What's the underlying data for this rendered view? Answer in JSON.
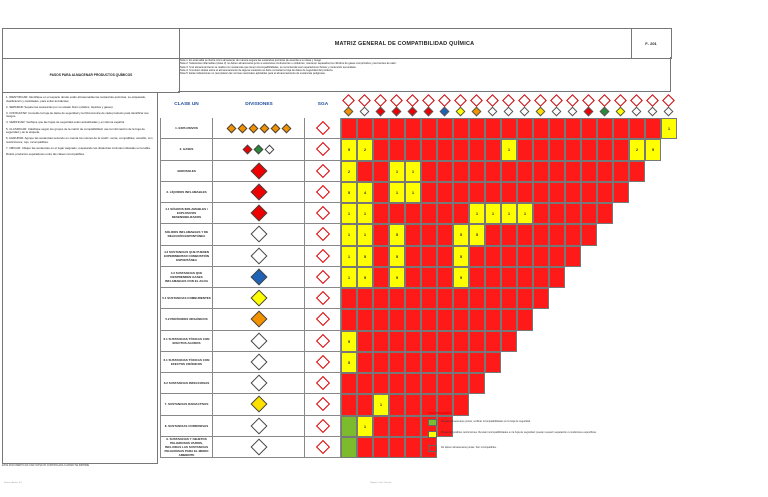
{
  "document": {
    "title": "MATRIZ GENERAL DE COMPATIBILIDAD QUÍMICA",
    "code": "F- 201",
    "left_box_title": "PASOS PARA ALMACENAR PRODUCTOS QUÍMICOS",
    "footer_left": "ESTE DOCUMENTO ES UNA COPIA NO CONTROLADA CUANDO SE IMPRIME",
    "tiny_left": "Fecha edición: 0.0",
    "tiny_center": "Página 1 de 1 Versión"
  },
  "notes": [
    "Nota 1: En esta tabla se ilustra cómo almacenar de manera segura las sustancias químicas de acuerdo a su clase y riesgo.",
    "Nota 2: Sustancias inflamables (clase 3) no deben almacenarse junto a sustancias comburentes u oxidantes; mantener separados los cilindros de gases comprimidos y las fuentes de calor.",
    "Nota 3: Si el almacenamiento se realiza con sustancias que tienen incompatibilidades, se recomienda usar separaciones físicas y contención secundaria.",
    "Nota 4: Si existen dudas sobre el almacenamiento de alguna sustancia se debe consultar la hoja de datos de seguridad del producto.",
    "Nota 5: Estas indicaciones no reemplazan las normas nacionales aplicables para el almacenamiento de sustancias peligrosas."
  ],
  "instructions": [
    "1. IDENTIFICAR: Identifique en el espacio donde están almacenadas las sustancias químicas, su etiquetado, clasificación y cantidades, para evitar accidentes.",
    "2. SEPARAR: Separe las sustancias por su estado físico (sólidos, líquidos y gases).",
    "3. CONSULTAR: Consulte la hoja de datos de seguridad y la ficha técnica de cada producto para identificar sus riesgos.",
    "4. VERIFICAR: Verifique que las hojas de seguridad estén actualizadas y en idioma español.",
    "5. CLASIFICAR: Clasifique según los grupos de la matriz de compatibilidad; use la información de la hoja de seguridad y de la etiqueta.",
    "6. AGRUPAR: Agrupe las sustancias teniendo en cuenta los colores de la matriz: verde, compatibles; amarillo, con restricciones; rojo, incompatibles.",
    "7. UBICAR: Ubique las sustancias en el lugar asignado, respetando las distancias mínimas indicadas en la tabla.",
    "Rótule productos separadores entre las clases incompatibles."
  ],
  "columns": {
    "clase": "CLASE UN",
    "divisiones": "DIVISIONES",
    "sga": "SGA"
  },
  "rows": [
    {
      "label": "1. EXPLOSIVOS"
    },
    {
      "label": "2. GASES"
    },
    {
      "label": "AEROSOLES"
    },
    {
      "label": "3. LÍQUIDOS INFLAMABLES"
    },
    {
      "label": "4.1 SÓLIDOS INFLAMABLES / EXPLOSIVOS DESENSIBILIZADOS"
    },
    {
      "label": "SÓLIDOS INFLAMABLES Y DE REACCIÓN ESPONTÁNEA"
    },
    {
      "label": "4.2 SUSTANCIAS QUE PUEDEN EXPERIMENTAR COMBUSTIÓN ESPONTÁNEA"
    },
    {
      "label": "4.3 SUSTANCIAS QUE DESPRENDEN GASES INFLAMABLES CON EL AGUA"
    },
    {
      "label": "5.1 SUSTANCIAS COMBURENTES"
    },
    {
      "label": "5.2 PERÓXIDOS ORGÁNICOS"
    },
    {
      "label": "6.1 SUSTANCIAS TÓXICAS CON EFECTOS AGUDOS"
    },
    {
      "label": "6.1 SUSTANCIAS TÓXICAS CON EFECTOS CRÓNICOS"
    },
    {
      "label": "6.2 SUSTANCIAS INFECCIOSAS"
    },
    {
      "label": "7. SUSTANCIAS RADIACTIVAS"
    },
    {
      "label": "8. SUSTANCIAS CORROSIVAS"
    },
    {
      "label": "9. SUSTANCIAS Y OBJETOS PELIGROSOS VARIOS, INCLUIDAS LAS SUSTANCIAS PELIGROSAS PARA EL MEDIO AMBIENTE"
    }
  ],
  "colors": {
    "green": "#7dbb2e",
    "yellow": "#ffff00",
    "red": "#ff1a1a"
  },
  "matrix": [
    [
      "R",
      "R",
      "R",
      "R",
      "R",
      "R",
      "R",
      "R",
      "R",
      "R",
      "R",
      "R",
      "R",
      "R",
      "R",
      "R",
      "R",
      "R",
      "R",
      "R",
      "Y"
    ],
    [
      "Y",
      "Y",
      "R",
      "R",
      "R",
      "R",
      "R",
      "R",
      "R",
      "R",
      "Y",
      "R",
      "R",
      "R",
      "R",
      "R",
      "R",
      "R",
      "Y",
      "Y"
    ],
    [
      "Y",
      "R",
      "R",
      "Y",
      "Y",
      "R",
      "R",
      "R",
      "R",
      "R",
      "R",
      "R",
      "R",
      "R",
      "R",
      "R",
      "R",
      "R",
      "R"
    ],
    [
      "Y",
      "Y",
      "R",
      "Y",
      "Y",
      "R",
      "R",
      "R",
      "R",
      "R",
      "R",
      "R",
      "R",
      "R",
      "R",
      "R",
      "R",
      "R"
    ],
    [
      "Y",
      "Y",
      "R",
      "R",
      "R",
      "R",
      "R",
      "R",
      "Y",
      "Y",
      "Y",
      "Y",
      "R",
      "R",
      "R",
      "R",
      "R"
    ],
    [
      "Y",
      "Y",
      "R",
      "Y",
      "R",
      "R",
      "R",
      "Y",
      "Y",
      "R",
      "R",
      "R",
      "R",
      "R",
      "R",
      "R"
    ],
    [
      "Y",
      "Y",
      "R",
      "Y",
      "R",
      "R",
      "R",
      "Y",
      "R",
      "R",
      "R",
      "R",
      "R",
      "R",
      "R"
    ],
    [
      "Y",
      "Y",
      "R",
      "Y",
      "R",
      "R",
      "R",
      "Y",
      "R",
      "R",
      "R",
      "R",
      "R",
      "R"
    ],
    [
      "R",
      "R",
      "R",
      "R",
      "R",
      "R",
      "R",
      "R",
      "R",
      "R",
      "R",
      "R",
      "R"
    ],
    [
      "R",
      "R",
      "R",
      "R",
      "R",
      "R",
      "R",
      "R",
      "R",
      "R",
      "R",
      "R"
    ],
    [
      "Y",
      "R",
      "R",
      "R",
      "R",
      "R",
      "R",
      "R",
      "R",
      "R",
      "R"
    ],
    [
      "Y",
      "R",
      "R",
      "R",
      "R",
      "R",
      "R",
      "R",
      "R",
      "R"
    ],
    [
      "R",
      "R",
      "R",
      "R",
      "R",
      "R",
      "R",
      "R",
      "R"
    ],
    [
      "R",
      "R",
      "Y",
      "R",
      "R",
      "R",
      "R",
      "R"
    ],
    [
      "G",
      "Y",
      "R",
      "R",
      "R",
      "R",
      "R"
    ],
    [
      "G",
      "R",
      "R",
      "R",
      "R",
      "R"
    ]
  ],
  "numbers": [
    [
      "",
      "",
      "",
      "",
      "",
      "",
      "",
      "",
      "",
      "",
      "",
      "",
      "",
      "",
      "",
      "",
      "",
      "",
      "",
      "",
      "1"
    ],
    [
      "5",
      "2",
      "",
      "",
      "",
      "",
      "",
      "",
      "",
      "",
      "1",
      "",
      "",
      "",
      "",
      "",
      "",
      "",
      "2",
      "5"
    ],
    [
      "2",
      "",
      "",
      "1",
      "1",
      "",
      "",
      "",
      "",
      "",
      "",
      "",
      "",
      "",
      "",
      "",
      "",
      "",
      "",
      ""
    ],
    [
      "5",
      "4",
      "",
      "1",
      "1",
      "",
      "",
      "",
      "",
      "",
      "",
      "",
      "",
      "",
      "",
      "",
      "",
      "",
      ""
    ],
    [
      "1",
      "1",
      "",
      "",
      "",
      "",
      "",
      "",
      "1",
      "1",
      "1",
      "1",
      "",
      "",
      "",
      "",
      "",
      ""
    ],
    [
      "1",
      "1",
      "",
      "5",
      "",
      "",
      "",
      "5",
      "5",
      "",
      "",
      "",
      "",
      "",
      "",
      "",
      ""
    ],
    [
      "1",
      "5",
      "",
      "5",
      "",
      "",
      "",
      "5",
      "",
      "",
      "",
      "",
      "",
      "",
      "",
      ""
    ],
    [
      "1",
      "5",
      "",
      "5",
      "",
      "",
      "",
      "5",
      "",
      "",
      "",
      "",
      "",
      "",
      ""
    ],
    [
      "",
      "",
      "",
      "",
      "",
      "",
      "",
      "",
      "",
      "",
      "",
      "",
      "",
      ""
    ],
    [
      "",
      "",
      "",
      "",
      "",
      "",
      "",
      "",
      "",
      "",
      "",
      "",
      ""
    ],
    [
      "5",
      "",
      "",
      "",
      "",
      "",
      "",
      "",
      "",
      "",
      "",
      ""
    ],
    [
      "5",
      "",
      "",
      "",
      "",
      "",
      "",
      "",
      "",
      "",
      ""
    ],
    [
      "",
      "",
      "",
      "",
      "",
      "",
      "",
      "",
      "",
      ""
    ],
    [
      "",
      "",
      "1",
      "",
      "",
      "",
      "",
      "",
      ""
    ],
    [
      "",
      "1",
      "",
      "",
      "",
      "",
      "",
      ""
    ],
    [
      "",
      "",
      "",
      "",
      "",
      "",
      ""
    ]
  ],
  "legend": {
    "title": "CONVENCIONES",
    "items": [
      {
        "color": "#7dbb2e",
        "text": "Pueden almacenarse juntas; verificar incompatibilidades en la hoja de seguridad."
      },
      {
        "color": "#ffff00",
        "text": "Presentan posibles restricciones. Revisar incompatibilidades en la hoja de seguridad; pueden requerir separación o condiciones específicas."
      },
      {
        "color": "#ff1a1a",
        "text": "No deben almacenarse juntas. Son incompatibles."
      }
    ]
  },
  "header_icons": [
    "explosive-icon",
    "gas-icon",
    "flame-icon",
    "flame-icon",
    "flame-icon",
    "flame-icon",
    "water-flame-icon",
    "oxidizer-icon",
    "peroxide-icon",
    "skull-icon",
    "toxic-icon",
    "biohazard-icon",
    "radioactive-icon",
    "corrosive-icon",
    "misc-icon",
    "flame-icon",
    "gas-icon",
    "oxidizer-icon",
    "skull-icon",
    "corrosive-icon",
    "misc-icon"
  ]
}
